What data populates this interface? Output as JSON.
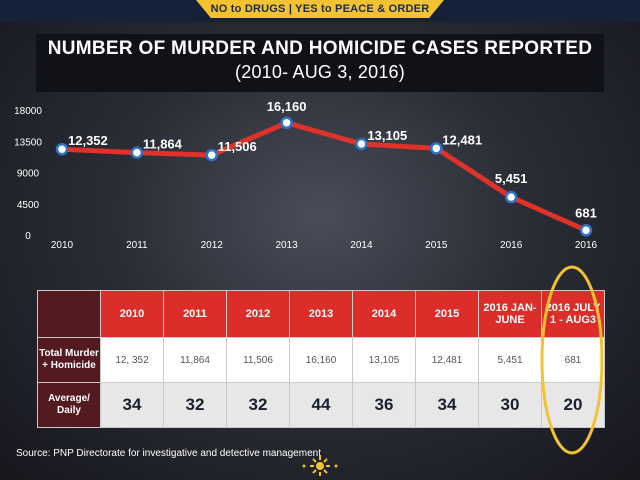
{
  "banner": {
    "text": "NO to DRUGS | YES to PEACE & ORDER"
  },
  "title": {
    "line1": "NUMBER OF MURDER AND HOMICIDE CASES REPORTED",
    "line2": "(2010- AUG 3, 2016)"
  },
  "chart_data": {
    "type": "line",
    "x": [
      "2010",
      "2011",
      "2012",
      "2013",
      "2014",
      "2015",
      "2016",
      "2016"
    ],
    "series": [
      {
        "values": [
          12352,
          11864,
          11506,
          16160,
          13105,
          12481,
          5451,
          681
        ]
      }
    ],
    "data_labels": [
      "12,352",
      "11,864",
      "11,506",
      "16,160",
      "13,105",
      "12,481",
      "5,451",
      "681"
    ],
    "yticks": [
      "0",
      "4500",
      "9000",
      "13500",
      "18000"
    ],
    "ylim": [
      0,
      18000
    ],
    "grid": false,
    "line_color": "#e0312b",
    "marker_color": "#2e73c8"
  },
  "table": {
    "headers": [
      "2010",
      "2011",
      "2012",
      "2013",
      "2014",
      "2015",
      "2016 JAN-JUNE",
      "2016 JULY 1 - AUG3"
    ],
    "rows": [
      {
        "label": "Total Murder + Homicide",
        "values": [
          "12, 352",
          "11,864",
          "11,506",
          "16,160",
          "13,105",
          "12,481",
          "5,451",
          "681"
        ]
      },
      {
        "label": "Average/ Daily",
        "values": [
          "34",
          "32",
          "32",
          "44",
          "36",
          "34",
          "30",
          "20"
        ]
      }
    ]
  },
  "source": "Source: PNP Directorate for investigative and detective management",
  "colors": {
    "header_red": "#dd2d2a",
    "row_head": "#531a20",
    "highlight": "#f2c230",
    "frame": "#16223a"
  }
}
